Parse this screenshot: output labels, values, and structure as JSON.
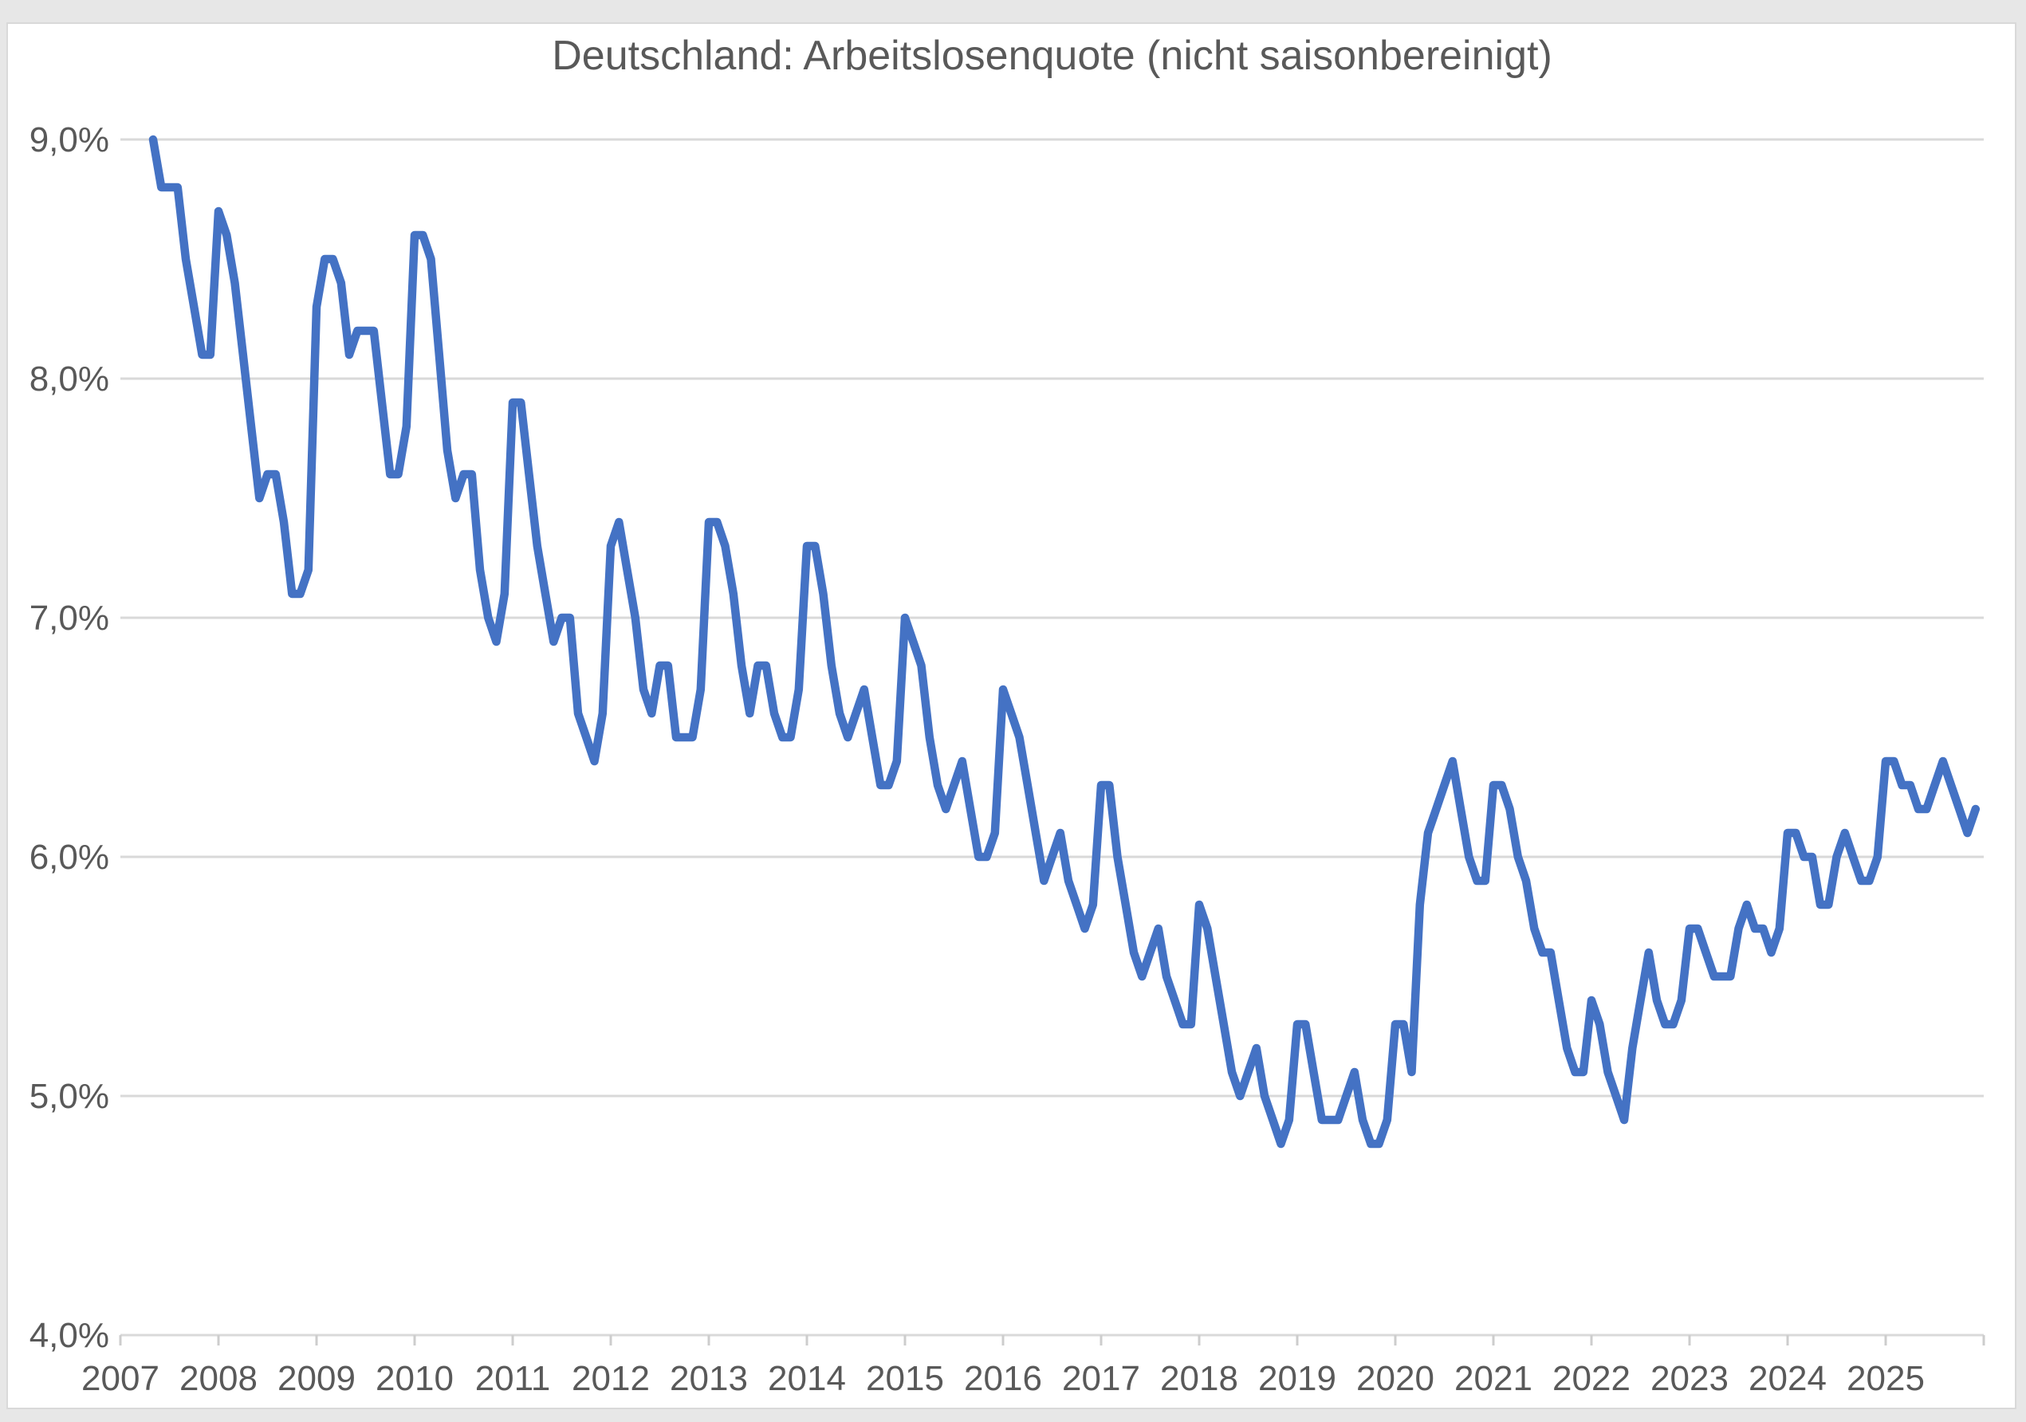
{
  "chart_data": {
    "type": "line",
    "title": "Deutschland: Arbeitslosenquote (nicht saisonbereinigt)",
    "xlabel": "",
    "ylabel": "",
    "unit": "%",
    "frequency": "monthly",
    "start": "2007-05",
    "end": "2025-12",
    "ylim": [
      4.0,
      9.0
    ],
    "y_tick_values": [
      9,
      8,
      7,
      6,
      5,
      4
    ],
    "y_tick_labels": [
      "9,0%",
      "8,0%",
      "7,0%",
      "6,0%",
      "5,0%",
      "4,0%"
    ],
    "x_tick_labels": [
      "2007",
      "2008",
      "2009",
      "2010",
      "2011",
      "2012",
      "2013",
      "2014",
      "2015",
      "2016",
      "2017",
      "2018",
      "2019",
      "2020",
      "2021",
      "2022",
      "2023",
      "2024",
      "2025"
    ],
    "grid": "horizontal",
    "legend": "none",
    "line_color": "#4472C4",
    "axis_label_color": "#595959",
    "gridline_color": "#d9d9d9",
    "series": [
      {
        "name": "Arbeitslosenquote Deutschland (nicht saisonbereinigt)",
        "values": [
          9.0,
          8.8,
          8.8,
          8.8,
          8.5,
          8.3,
          8.1,
          8.1,
          8.7,
          8.6,
          8.4,
          8.1,
          7.8,
          7.5,
          7.6,
          7.6,
          7.4,
          7.1,
          7.1,
          7.2,
          8.3,
          8.5,
          8.5,
          8.4,
          8.1,
          8.2,
          8.2,
          8.2,
          7.9,
          7.6,
          7.6,
          7.8,
          8.6,
          8.6,
          8.5,
          8.1,
          7.7,
          7.5,
          7.6,
          7.6,
          7.2,
          7.0,
          6.9,
          7.1,
          7.9,
          7.9,
          7.6,
          7.3,
          7.1,
          6.9,
          7.0,
          7.0,
          6.6,
          6.5,
          6.4,
          6.6,
          7.3,
          7.4,
          7.2,
          7.0,
          6.7,
          6.6,
          6.8,
          6.8,
          6.5,
          6.5,
          6.5,
          6.7,
          7.4,
          7.4,
          7.3,
          7.1,
          6.8,
          6.6,
          6.8,
          6.8,
          6.6,
          6.5,
          6.5,
          6.7,
          7.3,
          7.3,
          7.1,
          6.8,
          6.6,
          6.5,
          6.6,
          6.7,
          6.5,
          6.3,
          6.3,
          6.4,
          7.0,
          6.9,
          6.8,
          6.5,
          6.3,
          6.2,
          6.3,
          6.4,
          6.2,
          6.0,
          6.0,
          6.1,
          6.7,
          6.6,
          6.5,
          6.3,
          6.1,
          5.9,
          6.0,
          6.1,
          5.9,
          5.8,
          5.7,
          5.8,
          6.3,
          6.3,
          6.0,
          5.8,
          5.6,
          5.5,
          5.6,
          5.7,
          5.5,
          5.4,
          5.3,
          5.3,
          5.8,
          5.7,
          5.5,
          5.3,
          5.1,
          5.0,
          5.1,
          5.2,
          5.0,
          4.9,
          4.8,
          4.9,
          5.3,
          5.3,
          5.1,
          4.9,
          4.9,
          4.9,
          5.0,
          5.1,
          4.9,
          4.8,
          4.8,
          4.9,
          5.3,
          5.3,
          5.1,
          5.8,
          6.1,
          6.2,
          6.3,
          6.4,
          6.2,
          6.0,
          5.9,
          5.9,
          6.3,
          6.3,
          6.2,
          6.0,
          5.9,
          5.7,
          5.6,
          5.6,
          5.4,
          5.2,
          5.1,
          5.1,
          5.4,
          5.3,
          5.1,
          5.0,
          4.9,
          5.2,
          5.4,
          5.6,
          5.4,
          5.3,
          5.3,
          5.4,
          5.7,
          5.7,
          5.6,
          5.5,
          5.5,
          5.5,
          5.7,
          5.8,
          5.7,
          5.7,
          5.6,
          5.7,
          6.1,
          6.1,
          6.0,
          6.0,
          5.8,
          5.8,
          6.0,
          6.1,
          6.0,
          5.9,
          5.9,
          6.0,
          6.4,
          6.4,
          6.3,
          6.3,
          6.2,
          6.2,
          6.3,
          6.4,
          6.3,
          6.2,
          6.1,
          6.2
        ]
      }
    ]
  }
}
